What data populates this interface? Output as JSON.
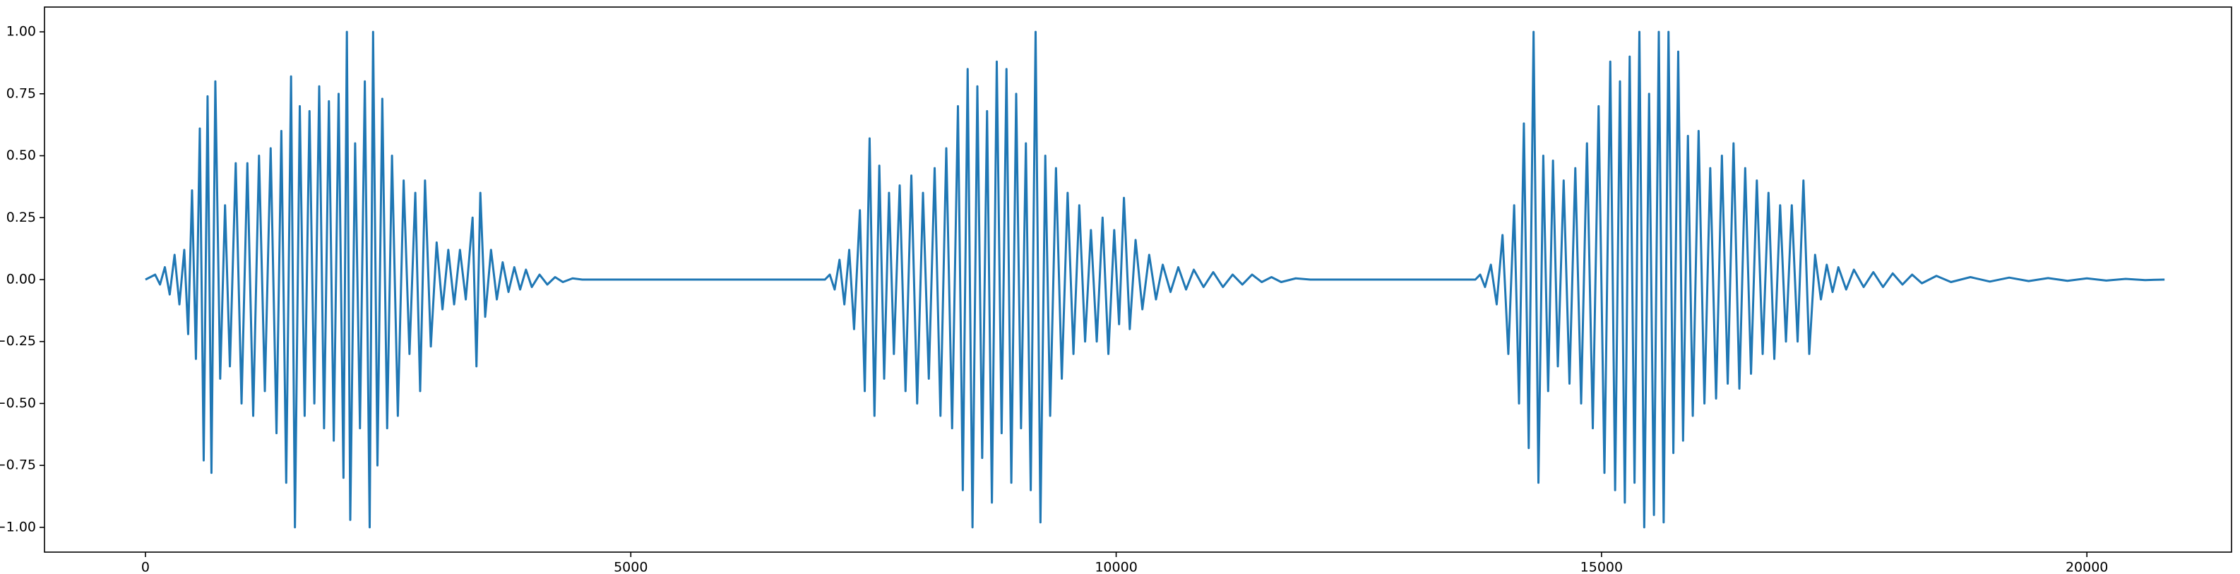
{
  "chart_data": {
    "type": "line",
    "x": [
      0,
      100,
      150,
      200,
      250,
      300,
      350,
      400,
      440,
      480,
      520,
      560,
      600,
      640,
      680,
      720,
      770,
      820,
      870,
      930,
      990,
      1050,
      1110,
      1170,
      1230,
      1290,
      1350,
      1400,
      1450,
      1500,
      1540,
      1590,
      1640,
      1690,
      1740,
      1790,
      1840,
      1890,
      1940,
      1990,
      2040,
      2075,
      2110,
      2160,
      2210,
      2260,
      2310,
      2345,
      2390,
      2440,
      2490,
      2540,
      2600,
      2660,
      2720,
      2780,
      2830,
      2880,
      2940,
      3000,
      3060,
      3120,
      3180,
      3240,
      3300,
      3370,
      3410,
      3450,
      3500,
      3560,
      3620,
      3680,
      3740,
      3800,
      3860,
      3920,
      3980,
      4060,
      4140,
      4220,
      4300,
      4400,
      4500,
      7000,
      7050,
      7100,
      7150,
      7200,
      7250,
      7300,
      7360,
      7410,
      7460,
      7510,
      7560,
      7610,
      7660,
      7710,
      7770,
      7830,
      7890,
      7950,
      8010,
      8070,
      8130,
      8190,
      8250,
      8310,
      8370,
      8420,
      8470,
      8520,
      8570,
      8620,
      8670,
      8720,
      8770,
      8820,
      8870,
      8920,
      8970,
      9020,
      9070,
      9120,
      9170,
      9220,
      9270,
      9320,
      9380,
      9440,
      9500,
      9560,
      9620,
      9680,
      9740,
      9800,
      9860,
      9920,
      9980,
      10030,
      10080,
      10140,
      10200,
      10270,
      10340,
      10410,
      10480,
      10560,
      10640,
      10720,
      10800,
      10900,
      11000,
      11100,
      11200,
      11300,
      11400,
      11500,
      11600,
      11700,
      11850,
      12000,
      13700,
      13750,
      13800,
      13860,
      13920,
      13980,
      14040,
      14100,
      14150,
      14200,
      14250,
      14300,
      14350,
      14400,
      14450,
      14500,
      14550,
      14610,
      14670,
      14730,
      14790,
      14850,
      14910,
      14970,
      15030,
      15090,
      15140,
      15190,
      15240,
      15290,
      15340,
      15390,
      15440,
      15490,
      15540,
      15590,
      15640,
      15690,
      15740,
      15790,
      15840,
      15890,
      15940,
      16000,
      16060,
      16120,
      16180,
      16240,
      16300,
      16360,
      16420,
      16480,
      16540,
      16600,
      16660,
      16720,
      16780,
      16840,
      16900,
      16960,
      17020,
      17080,
      17140,
      17200,
      17260,
      17320,
      17380,
      17440,
      17520,
      17600,
      17700,
      17800,
      17900,
      18000,
      18100,
      18200,
      18300,
      18450,
      18600,
      18800,
      19000,
      19200,
      19400,
      19600,
      19800,
      20000,
      20200,
      20400,
      20600,
      20800
    ],
    "series": [
      {
        "color": "#1f77b4",
        "values": [
          0,
          0.02,
          -0.02,
          0.05,
          -0.06,
          0.1,
          -0.1,
          0.12,
          -0.22,
          0.36,
          -0.32,
          0.61,
          -0.73,
          0.74,
          -0.78,
          0.8,
          -0.4,
          0.3,
          -0.35,
          0.47,
          -0.5,
          0.47,
          -0.55,
          0.5,
          -0.45,
          0.53,
          -0.62,
          0.6,
          -0.82,
          0.82,
          -1.0,
          0.7,
          -0.55,
          0.68,
          -0.5,
          0.78,
          -0.6,
          0.72,
          -0.65,
          0.75,
          -0.8,
          1.0,
          -0.97,
          0.55,
          -0.6,
          0.8,
          -1.0,
          1.0,
          -0.75,
          0.73,
          -0.6,
          0.5,
          -0.55,
          0.4,
          -0.3,
          0.35,
          -0.45,
          0.4,
          -0.27,
          0.15,
          -0.12,
          0.12,
          -0.1,
          0.12,
          -0.08,
          0.25,
          -0.35,
          0.35,
          -0.15,
          0.12,
          -0.08,
          0.07,
          -0.05,
          0.05,
          -0.04,
          0.04,
          -0.03,
          0.02,
          -0.02,
          0.01,
          -0.01,
          0.005,
          0,
          0,
          0.02,
          -0.04,
          0.08,
          -0.1,
          0.12,
          -0.2,
          0.28,
          -0.45,
          0.57,
          -0.55,
          0.46,
          -0.4,
          0.35,
          -0.3,
          0.38,
          -0.45,
          0.42,
          -0.5,
          0.35,
          -0.4,
          0.45,
          -0.55,
          0.53,
          -0.6,
          0.7,
          -0.85,
          0.85,
          -1.0,
          0.78,
          -0.72,
          0.68,
          -0.9,
          0.88,
          -0.62,
          0.85,
          -0.82,
          0.75,
          -0.6,
          0.55,
          -0.85,
          1.0,
          -0.98,
          0.5,
          -0.55,
          0.45,
          -0.4,
          0.35,
          -0.3,
          0.3,
          -0.25,
          0.2,
          -0.25,
          0.25,
          -0.3,
          0.2,
          -0.18,
          0.33,
          -0.2,
          0.16,
          -0.12,
          0.1,
          -0.08,
          0.06,
          -0.05,
          0.05,
          -0.04,
          0.04,
          -0.03,
          0.03,
          -0.03,
          0.02,
          -0.02,
          0.02,
          -0.01,
          0.01,
          -0.01,
          0.005,
          0,
          0,
          0.02,
          -0.03,
          0.06,
          -0.1,
          0.18,
          -0.3,
          0.3,
          -0.5,
          0.63,
          -0.68,
          1.0,
          -0.82,
          0.5,
          -0.45,
          0.48,
          -0.35,
          0.4,
          -0.42,
          0.45,
          -0.5,
          0.55,
          -0.6,
          0.7,
          -0.78,
          0.88,
          -0.85,
          0.8,
          -0.9,
          0.9,
          -0.82,
          1.0,
          -1.0,
          0.75,
          -0.95,
          1.0,
          -0.98,
          1.0,
          -0.7,
          0.92,
          -0.65,
          0.58,
          -0.55,
          0.6,
          -0.5,
          0.45,
          -0.48,
          0.5,
          -0.42,
          0.55,
          -0.44,
          0.45,
          -0.38,
          0.4,
          -0.3,
          0.35,
          -0.32,
          0.3,
          -0.25,
          0.3,
          -0.25,
          0.4,
          -0.3,
          0.1,
          -0.08,
          0.06,
          -0.05,
          0.05,
          -0.04,
          0.04,
          -0.03,
          0.03,
          -0.03,
          0.025,
          -0.02,
          0.02,
          -0.015,
          0.015,
          -0.01,
          0.01,
          -0.008,
          0.008,
          -0.006,
          0.006,
          -0.005,
          0.005,
          -0.004,
          0.003,
          -0.002,
          0
        ]
      }
    ],
    "xlim": [
      -1040,
      21490
    ],
    "ylim": [
      -1.1,
      1.1
    ],
    "xticks": [
      0,
      5000,
      10000,
      15000,
      20000
    ],
    "yticks": [
      {
        "value": -1,
        "label": "−1.00"
      },
      {
        "value": -0.75,
        "label": "−0.75"
      },
      {
        "value": -0.5,
        "label": "−0.50"
      },
      {
        "value": -0.25,
        "label": "−0.25"
      },
      {
        "value": 0,
        "label": "0.00"
      },
      {
        "value": 0.25,
        "label": "0.25"
      },
      {
        "value": 0.5,
        "label": "0.50"
      },
      {
        "value": 0.75,
        "label": "0.75"
      },
      {
        "value": 1,
        "label": "1.00"
      }
    ],
    "grid": false
  }
}
